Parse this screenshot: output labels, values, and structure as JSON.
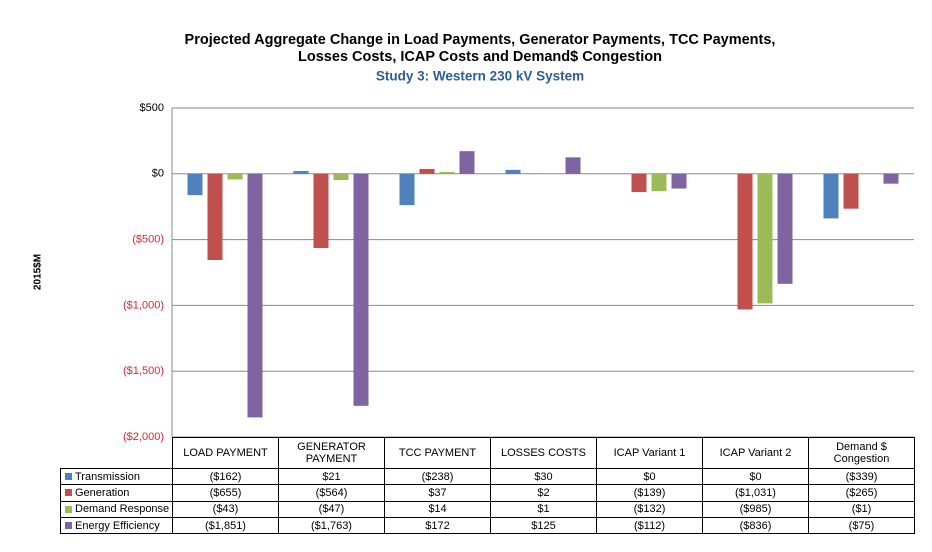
{
  "chart_data": {
    "type": "bar",
    "title": "Projected Aggregate Change in Load Payments, Generator Payments, TCC Payments, Losses Costs, ICAP Costs and Demand$ Congestion",
    "subtitle": "Study 3: Western 230 kV System",
    "y_label": "2015$M",
    "categories": [
      "LOAD PAYMENT",
      "GENERATOR PAYMENT",
      "TCC PAYMENT",
      "LOSSES COSTS",
      "ICAP Variant 1",
      "ICAP Variant 2",
      "Demand $ Congestion"
    ],
    "series": [
      {
        "name": "Transmission",
        "color": "#4f81bd",
        "values": [
          -162,
          21,
          -238,
          30,
          0,
          0,
          -339
        ],
        "value_labels": [
          "($162)",
          "$21",
          "($238)",
          "$30",
          "$0",
          "$0",
          "($339)"
        ]
      },
      {
        "name": "Generation",
        "color": "#c0504d",
        "values": [
          -655,
          -564,
          37,
          2,
          -139,
          -1031,
          -265
        ],
        "value_labels": [
          "($655)",
          "($564)",
          "$37",
          "$2",
          "($139)",
          "($1,031)",
          "($265)"
        ]
      },
      {
        "name": "Demand Response",
        "color": "#9bbb59",
        "values": [
          -43,
          -47,
          14,
          1,
          -132,
          -985,
          -1
        ],
        "value_labels": [
          "($43)",
          "($47)",
          "$14",
          "$1",
          "($132)",
          "($985)",
          "($1)"
        ]
      },
      {
        "name": "Energy Efficiency",
        "color": "#8064a2",
        "values": [
          -1851,
          -1763,
          172,
          125,
          -112,
          -836,
          -75
        ],
        "value_labels": [
          "($1,851)",
          "($1,763)",
          "$172",
          "$125",
          "($112)",
          "($836)",
          "($75)"
        ]
      }
    ],
    "ylim": [
      -2000,
      500
    ],
    "yticks": [
      {
        "value": -2000,
        "label": "($2,000)"
      },
      {
        "value": -1500,
        "label": "($1,500)"
      },
      {
        "value": -1000,
        "label": "($1,000)"
      },
      {
        "value": -500,
        "label": "($500)"
      },
      {
        "value": 0,
        "label": "$0"
      },
      {
        "value": 500,
        "label": "$500"
      }
    ],
    "grid": true
  }
}
